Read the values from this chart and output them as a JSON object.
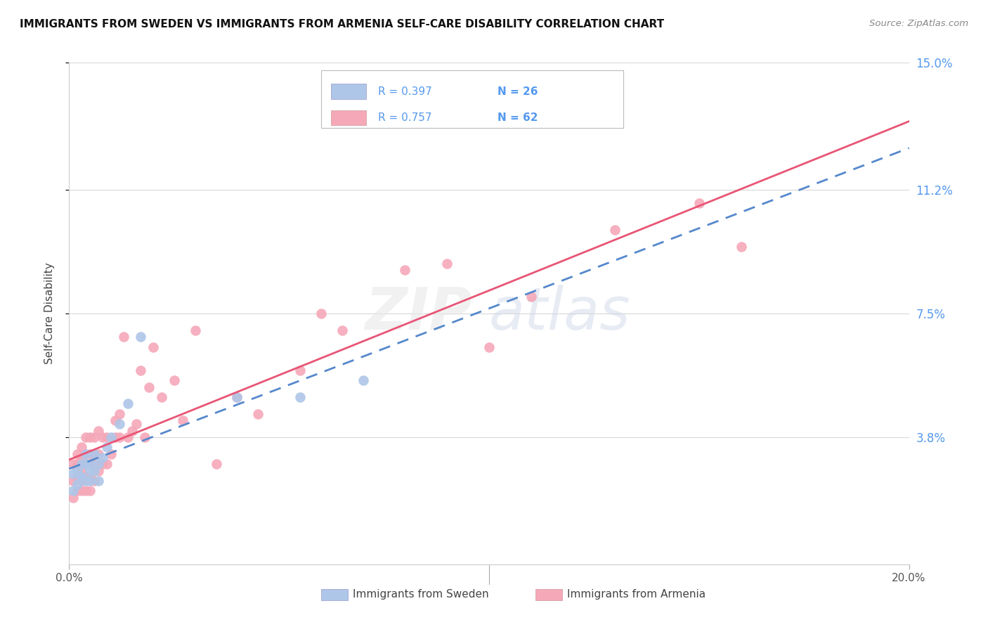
{
  "title": "IMMIGRANTS FROM SWEDEN VS IMMIGRANTS FROM ARMENIA SELF-CARE DISABILITY CORRELATION CHART",
  "source": "Source: ZipAtlas.com",
  "ylabel": "Self-Care Disability",
  "xlim": [
    0.0,
    0.2
  ],
  "ylim": [
    0.0,
    0.15
  ],
  "ytick_labels": [
    "3.8%",
    "7.5%",
    "11.2%",
    "15.0%"
  ],
  "ytick_positions": [
    0.038,
    0.075,
    0.112,
    0.15
  ],
  "grid_color": "#d8d8d8",
  "sweden_color": "#aec6e8",
  "armenia_color": "#f5a8b8",
  "sweden_line_color": "#5588cc",
  "armenia_line_color": "#e85575",
  "R_sweden": 0.397,
  "N_sweden": 26,
  "R_armenia": 0.757,
  "N_armenia": 62,
  "legend_label_sweden": "Immigrants from Sweden",
  "legend_label_armenia": "Immigrants from Armenia",
  "watermark": "ZIPatlas",
  "sweden_x": [
    0.001,
    0.001,
    0.002,
    0.002,
    0.003,
    0.003,
    0.003,
    0.004,
    0.004,
    0.004,
    0.005,
    0.005,
    0.005,
    0.006,
    0.006,
    0.007,
    0.007,
    0.008,
    0.009,
    0.01,
    0.012,
    0.014,
    0.017,
    0.04,
    0.055,
    0.07
  ],
  "sweden_y": [
    0.022,
    0.027,
    0.024,
    0.028,
    0.026,
    0.026,
    0.03,
    0.025,
    0.03,
    0.033,
    0.025,
    0.028,
    0.03,
    0.028,
    0.033,
    0.025,
    0.03,
    0.032,
    0.035,
    0.038,
    0.042,
    0.048,
    0.068,
    0.05,
    0.05,
    0.055
  ],
  "armenia_x": [
    0.001,
    0.001,
    0.001,
    0.002,
    0.002,
    0.002,
    0.002,
    0.003,
    0.003,
    0.003,
    0.003,
    0.003,
    0.004,
    0.004,
    0.004,
    0.004,
    0.004,
    0.005,
    0.005,
    0.005,
    0.005,
    0.005,
    0.006,
    0.006,
    0.006,
    0.007,
    0.007,
    0.007,
    0.008,
    0.008,
    0.009,
    0.009,
    0.01,
    0.011,
    0.011,
    0.012,
    0.012,
    0.013,
    0.014,
    0.015,
    0.016,
    0.017,
    0.018,
    0.019,
    0.02,
    0.022,
    0.025,
    0.027,
    0.03,
    0.035,
    0.04,
    0.045,
    0.055,
    0.06,
    0.065,
    0.08,
    0.09,
    0.1,
    0.11,
    0.13,
    0.15,
    0.16
  ],
  "armenia_y": [
    0.02,
    0.025,
    0.03,
    0.022,
    0.026,
    0.03,
    0.033,
    0.022,
    0.025,
    0.028,
    0.032,
    0.035,
    0.022,
    0.026,
    0.03,
    0.033,
    0.038,
    0.022,
    0.026,
    0.03,
    0.033,
    0.038,
    0.025,
    0.03,
    0.038,
    0.028,
    0.033,
    0.04,
    0.03,
    0.038,
    0.03,
    0.038,
    0.033,
    0.038,
    0.043,
    0.038,
    0.045,
    0.068,
    0.038,
    0.04,
    0.042,
    0.058,
    0.038,
    0.053,
    0.065,
    0.05,
    0.055,
    0.043,
    0.07,
    0.03,
    0.05,
    0.045,
    0.058,
    0.075,
    0.07,
    0.088,
    0.09,
    0.065,
    0.08,
    0.1,
    0.108,
    0.095
  ]
}
